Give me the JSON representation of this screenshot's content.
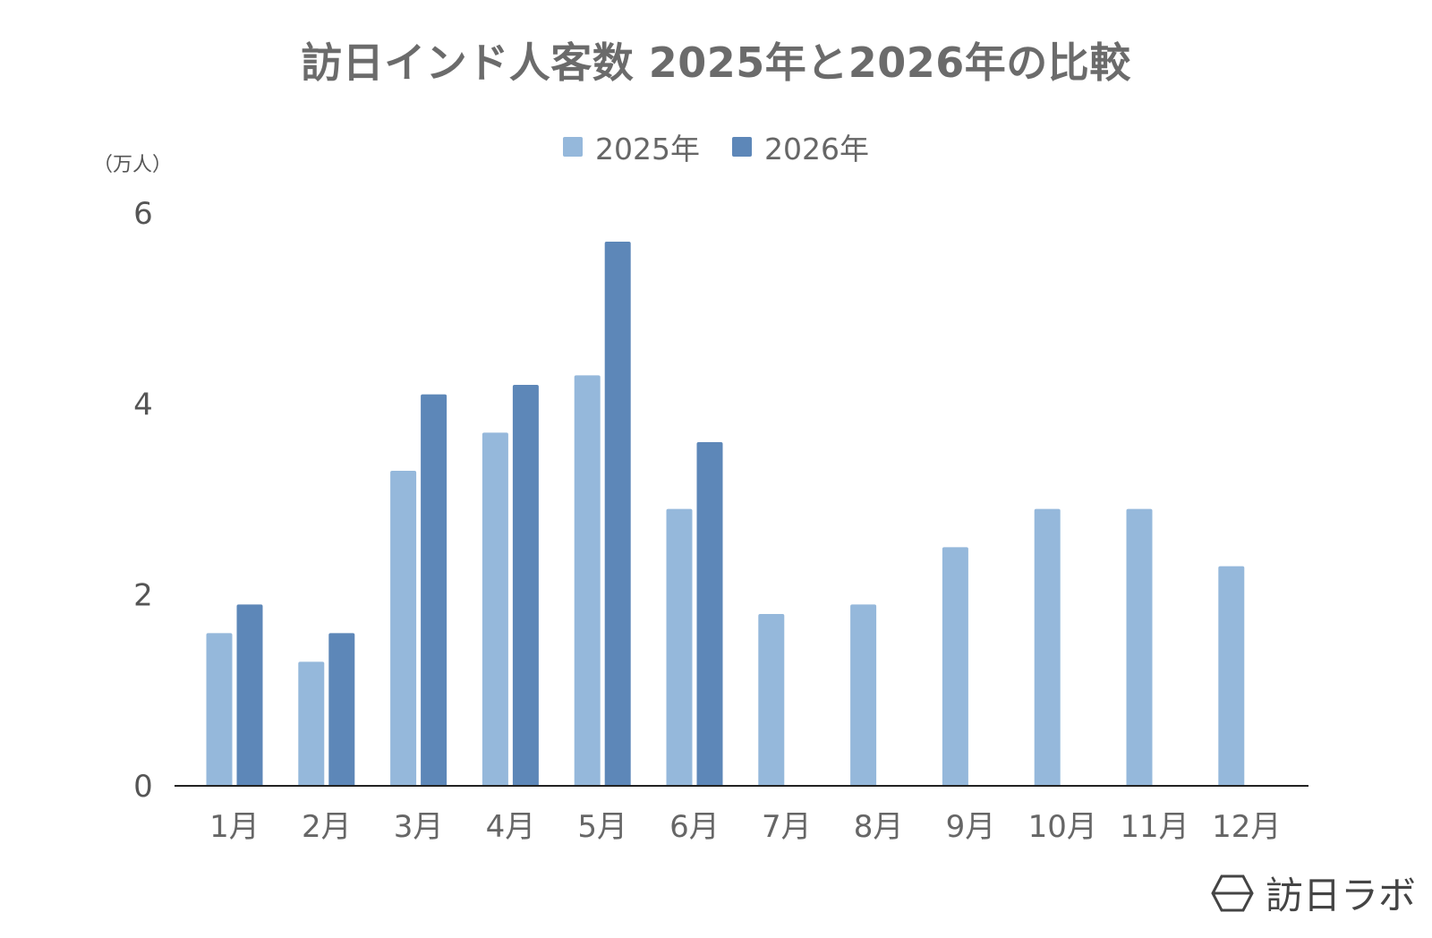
{
  "chart_data": {
    "type": "bar",
    "title": "訪日インド人客数 2025年と2026年の比較",
    "unit_label": "（万人）",
    "categories": [
      "1月",
      "2月",
      "3月",
      "4月",
      "5月",
      "6月",
      "7月",
      "8月",
      "9月",
      "10月",
      "11月",
      "12月"
    ],
    "series": [
      {
        "name": "2025年",
        "color": "#95b8db",
        "values": [
          1.6,
          1.3,
          3.3,
          3.7,
          4.3,
          2.9,
          1.8,
          1.9,
          2.5,
          2.9,
          2.9,
          2.3
        ]
      },
      {
        "name": "2026年",
        "color": "#5d87b8",
        "values": [
          1.9,
          1.6,
          4.1,
          4.2,
          5.7,
          3.6,
          null,
          null,
          null,
          null,
          null,
          null
        ]
      }
    ],
    "ylim": [
      0,
      6
    ],
    "yticks": [
      0,
      2,
      4,
      6
    ],
    "grid": false,
    "legend_position": "top-center"
  },
  "watermark": {
    "text": "訪日ラボ",
    "icon": "hexagon-logo-icon"
  }
}
